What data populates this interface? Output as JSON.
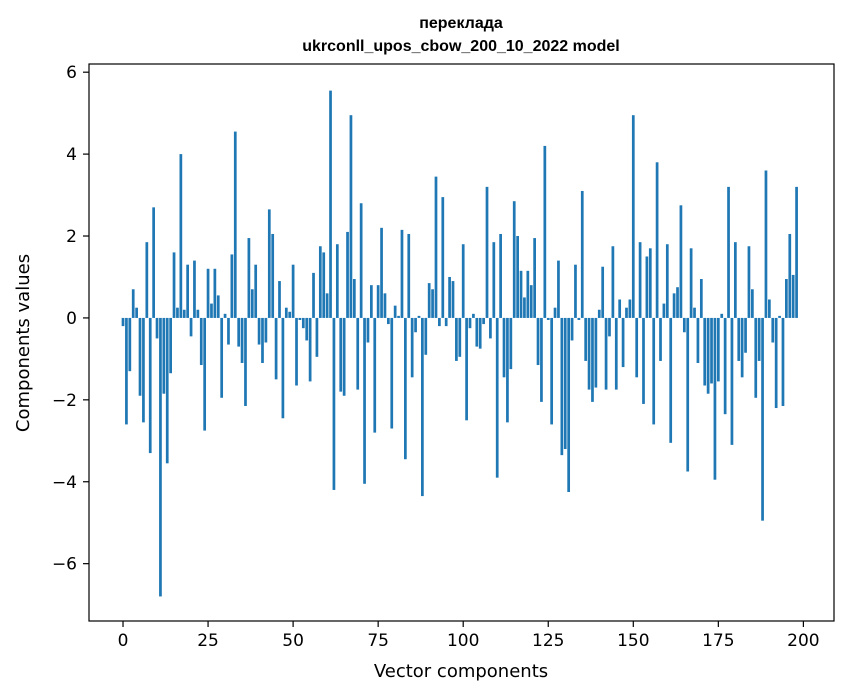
{
  "chart_data": {
    "type": "bar",
    "title_line1": "переклада",
    "title_line2": "ukrconll_upos_cbow_200_10_2022 model",
    "xlabel": "Vector components",
    "ylabel": "Components values",
    "xlim": [
      -10,
      209
    ],
    "ylim": [
      -7.4,
      6.2
    ],
    "xticks": [
      0,
      25,
      50,
      75,
      100,
      125,
      150,
      175,
      200
    ],
    "xtick_labels": [
      "0",
      "25",
      "50",
      "75",
      "100",
      "125",
      "150",
      "175",
      "200"
    ],
    "yticks": [
      -6,
      -4,
      -2,
      0,
      2,
      4,
      6
    ],
    "ytick_labels": [
      "−6",
      "−4",
      "−2",
      "0",
      "2",
      "4",
      "6"
    ],
    "color": "#1f77b4",
    "values": [
      -0.2,
      -2.6,
      -1.3,
      0.7,
      0.25,
      -1.9,
      -2.55,
      1.85,
      -3.3,
      2.7,
      -0.5,
      -6.8,
      -1.85,
      -3.55,
      -1.35,
      1.6,
      0.25,
      4.0,
      0.2,
      1.3,
      -0.45,
      1.4,
      0.2,
      -1.15,
      -2.75,
      1.2,
      0.35,
      1.2,
      0.55,
      -1.95,
      0.1,
      -0.65,
      1.55,
      4.55,
      -0.7,
      -1.1,
      -2.15,
      1.95,
      0.7,
      1.3,
      -0.65,
      -1.1,
      -0.6,
      2.65,
      2.05,
      -1.5,
      0.9,
      -2.45,
      0.25,
      0.15,
      1.3,
      -1.65,
      -0.05,
      -0.25,
      -0.55,
      -1.55,
      1.1,
      -0.95,
      1.75,
      1.6,
      0.6,
      5.55,
      -4.2,
      1.8,
      -1.8,
      -1.9,
      2.1,
      4.95,
      0.95,
      -1.75,
      2.8,
      -4.05,
      -0.6,
      0.8,
      -2.8,
      0.8,
      2.2,
      0.6,
      -0.15,
      -2.7,
      0.3,
      0.05,
      2.15,
      -3.45,
      2.05,
      -1.45,
      -0.35,
      0.05,
      -4.35,
      -0.9,
      0.85,
      0.7,
      3.45,
      -0.2,
      2.95,
      -0.2,
      1.0,
      0.9,
      -1.05,
      -0.95,
      1.8,
      -2.5,
      -0.25,
      0.1,
      -0.7,
      -0.75,
      -0.15,
      3.2,
      -0.5,
      1.85,
      -3.9,
      2.05,
      -1.45,
      -2.55,
      -1.25,
      2.85,
      2.0,
      1.15,
      0.5,
      1.15,
      0.8,
      1.95,
      -1.15,
      -2.05,
      4.2,
      -0.05,
      -2.6,
      0.25,
      1.4,
      -3.35,
      -3.2,
      -4.25,
      -0.55,
      1.3,
      -0.05,
      3.1,
      -1.05,
      -1.75,
      -2.05,
      -1.7,
      0.2,
      1.25,
      -1.75,
      -0.45,
      1.75,
      -1.75,
      0.45,
      -1.2,
      0.25,
      0.45,
      4.95,
      -1.45,
      1.85,
      -2.1,
      1.5,
      1.7,
      -2.6,
      3.8,
      -1.05,
      0.35,
      1.8,
      -3.05,
      0.6,
      0.75,
      2.75,
      -0.35,
      -3.75,
      1.7,
      0.25,
      -1.1,
      0.95,
      -1.65,
      -1.85,
      -1.6,
      -3.95,
      -1.55,
      0.1,
      -2.35,
      3.2,
      -3.1,
      1.85,
      -1.05,
      -1.45,
      -0.85,
      1.75,
      0.7,
      -1.95,
      -1.05,
      -4.95,
      3.6,
      0.45,
      -0.6,
      -2.2,
      0.05,
      -2.15,
      0.95,
      2.05,
      1.05,
      3.2
    ]
  }
}
